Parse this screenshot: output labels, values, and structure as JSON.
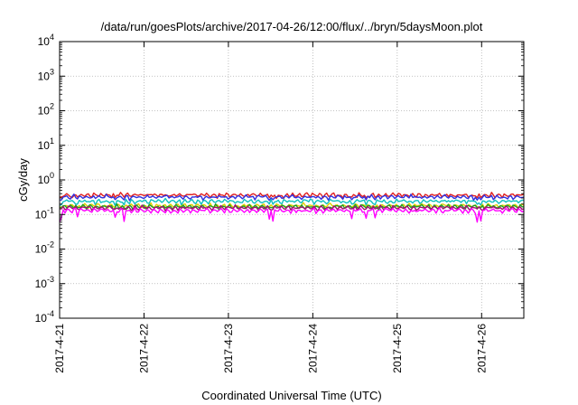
{
  "chart_data": {
    "type": "line",
    "title": "/data/run/goesPlots/archive/2017-04-26/12:00/flux/../bryn/5daysMoon.plot",
    "xlabel": "Coordinated Universal Time (UTC)",
    "ylabel": "cGy/day",
    "yscale": "log",
    "ylim": [
      0.0001,
      10000
    ],
    "xlim": [
      "2017-04-21T00:00",
      "2017-04-26T12:00"
    ],
    "grid": true,
    "y_ticks": [
      {
        "value": 0.0001,
        "base": "10",
        "exp": "-4"
      },
      {
        "value": 0.001,
        "base": "10",
        "exp": "-3"
      },
      {
        "value": 0.01,
        "base": "10",
        "exp": "-2"
      },
      {
        "value": 0.1,
        "base": "10",
        "exp": "-1"
      },
      {
        "value": 1,
        "base": "10",
        "exp": "0"
      },
      {
        "value": 10,
        "base": "10",
        "exp": "1"
      },
      {
        "value": 100,
        "base": "10",
        "exp": "2"
      },
      {
        "value": 1000,
        "base": "10",
        "exp": "3"
      },
      {
        "value": 10000,
        "base": "10",
        "exp": "4"
      }
    ],
    "x_ticks": [
      "2017-4-21",
      "2017-4-22",
      "2017-4-23",
      "2017-4-24",
      "2017-4-25",
      "2017-4-26"
    ],
    "series": [
      {
        "color": "#e02020",
        "level": 0.36,
        "dip_depth": 0.15
      },
      {
        "color": "#3030e0",
        "level": 0.32,
        "dip_depth": 0.2
      },
      {
        "color": "#10c0c0",
        "level": 0.24,
        "dip_depth": 0.25
      },
      {
        "color": "#e0d000",
        "level": 0.18,
        "dip_depth": 0.1
      },
      {
        "color": "#20a020",
        "level": 0.17,
        "dip_depth": 0.1
      },
      {
        "color": "#a01070",
        "level": 0.155,
        "dip_depth": 0.1
      },
      {
        "color": "#ff00ff",
        "level": 0.13,
        "dip_depth": 0.55
      }
    ]
  }
}
